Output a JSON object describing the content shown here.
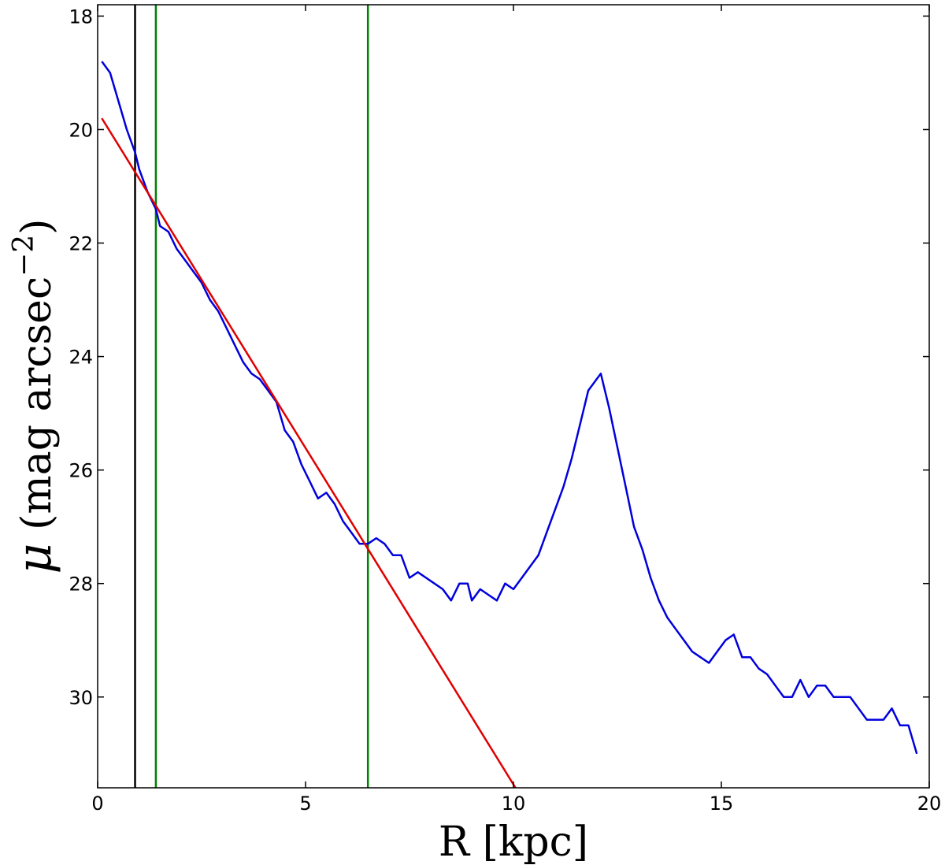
{
  "chart_data": {
    "type": "line",
    "xlabel": "R [kpc]",
    "ylabel": {
      "symbol": "μ",
      "text": "(mag arcsec",
      "sup": "−2",
      "close": ")"
    },
    "xlim": [
      0,
      20
    ],
    "ylim": [
      31.6,
      17.8
    ],
    "y_inverted": true,
    "xticks": [
      0,
      5,
      10,
      15,
      20
    ],
    "xtick_labels": [
      "0",
      "5",
      "10",
      "15",
      "20"
    ],
    "yticks": [
      18,
      20,
      22,
      24,
      26,
      28,
      30
    ],
    "ytick_labels": [
      "18",
      "20",
      "22",
      "24",
      "26",
      "28",
      "30"
    ],
    "grid": false,
    "series": [
      {
        "color": "#0000dd",
        "x": [
          0.1,
          0.3,
          0.5,
          0.7,
          0.9,
          1.0,
          1.2,
          1.4,
          1.5,
          1.7,
          1.9,
          2.1,
          2.3,
          2.5,
          2.7,
          2.9,
          3.1,
          3.3,
          3.5,
          3.7,
          3.9,
          4.1,
          4.3,
          4.5,
          4.7,
          4.9,
          5.1,
          5.3,
          5.5,
          5.7,
          5.9,
          6.1,
          6.3,
          6.5,
          6.7,
          6.9,
          7.1,
          7.3,
          7.5,
          7.7,
          7.9,
          8.1,
          8.3,
          8.5,
          8.7,
          8.9,
          9.0,
          9.2,
          9.4,
          9.6,
          9.8,
          10.0,
          10.2,
          10.4,
          10.6,
          10.8,
          11.0,
          11.2,
          11.4,
          11.6,
          11.8,
          12.1,
          12.3,
          12.5,
          12.7,
          12.9,
          13.1,
          13.3,
          13.5,
          13.7,
          13.9,
          14.1,
          14.3,
          14.5,
          14.7,
          14.9,
          15.1,
          15.3,
          15.5,
          15.7,
          15.9,
          16.1,
          16.3,
          16.5,
          16.7,
          16.9,
          17.1,
          17.3,
          17.5,
          17.7,
          17.9,
          18.1,
          18.3,
          18.5,
          18.7,
          18.9,
          19.1,
          19.3,
          19.5,
          19.7
        ],
        "y": [
          18.8,
          19.0,
          19.5,
          20.0,
          20.4,
          20.7,
          21.1,
          21.4,
          21.7,
          21.8,
          22.1,
          22.3,
          22.5,
          22.7,
          23.0,
          23.2,
          23.5,
          23.8,
          24.1,
          24.3,
          24.4,
          24.6,
          24.8,
          25.3,
          25.5,
          25.9,
          26.2,
          26.5,
          26.4,
          26.6,
          26.9,
          27.1,
          27.3,
          27.3,
          27.2,
          27.3,
          27.5,
          27.5,
          27.9,
          27.8,
          27.9,
          28.0,
          28.1,
          28.3,
          28.0,
          28.0,
          28.3,
          28.1,
          28.2,
          28.3,
          28.0,
          28.1,
          27.9,
          27.7,
          27.5,
          27.1,
          26.7,
          26.3,
          25.8,
          25.2,
          24.6,
          24.3,
          24.9,
          25.6,
          26.3,
          27.0,
          27.4,
          27.9,
          28.3,
          28.6,
          28.8,
          29.0,
          29.2,
          29.3,
          29.4,
          29.2,
          29.0,
          28.9,
          29.3,
          29.3,
          29.5,
          29.6,
          29.8,
          30.0,
          30.0,
          29.7,
          30.0,
          29.8,
          29.8,
          30.0,
          30.0,
          30.0,
          30.2,
          30.4,
          30.4,
          30.4,
          30.2,
          30.5,
          30.5,
          31.0
        ]
      },
      {
        "color": "#e00000",
        "x": [
          0.1,
          10.05
        ],
        "y": [
          19.8,
          31.6
        ]
      }
    ],
    "vlines": [
      {
        "x": 0.9,
        "color": "#000000"
      },
      {
        "x": 1.4,
        "color": "#008000"
      },
      {
        "x": 6.5,
        "color": "#008000"
      }
    ]
  }
}
